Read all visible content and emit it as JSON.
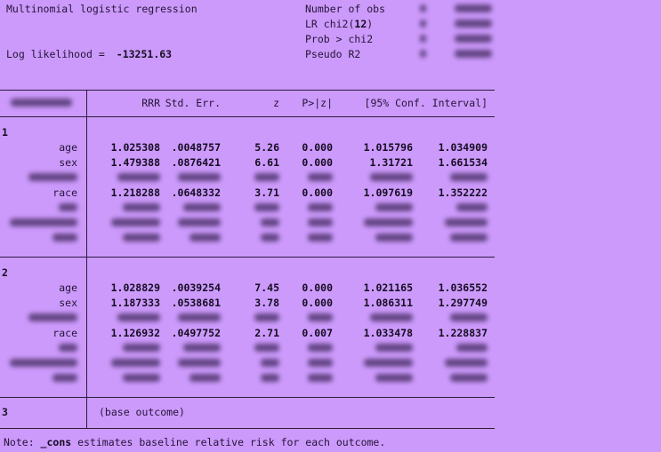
{
  "theme": {
    "background": "#cc9afb",
    "text": "#241439",
    "bold_text": "#150d22",
    "rule": "#2c1a41",
    "redaction": "#3a2356"
  },
  "header": {
    "title": "Multinomial logistic regression",
    "log_likelihood_label": "Log likelihood =",
    "log_likelihood_value": "-13251.63",
    "stats": [
      {
        "label": "Number of obs",
        "bold": "",
        "suffix": "",
        "eq_blob": "█",
        "value_blob": "██████",
        "redacted": true
      },
      {
        "label": "LR chi2(",
        "bold": "12",
        "suffix": ")",
        "eq_blob": "█",
        "value_blob": "██████",
        "redacted": true
      },
      {
        "label": "Prob > chi2",
        "bold": "",
        "suffix": "",
        "eq_blob": "█",
        "value_blob": "██████",
        "redacted": true
      },
      {
        "label": "Pseudo R2",
        "bold": "",
        "suffix": "",
        "eq_blob": "█",
        "value_blob": "██████",
        "redacted": true
      }
    ]
  },
  "table": {
    "depvar_blob": "██████████",
    "depvar_redacted": true,
    "col_headers": {
      "rrr": "RRR",
      "se": "Std. Err.",
      "z": "z",
      "p": "P>|z|",
      "ci": "[95% Conf. Interval]"
    },
    "sections": [
      {
        "outcome": "1",
        "rows": [
          {
            "label": "age",
            "rrr": "1.025308",
            "se": ".0048757",
            "z": "5.26",
            "p": "0.000",
            "lo": "1.015796",
            "hi": "1.034909"
          },
          {
            "label": "sex",
            "rrr": "1.479388",
            "se": ".0876421",
            "z": "6.61",
            "p": "0.000",
            "lo": "1.31721",
            "hi": "1.661534"
          },
          {
            "redacted": true,
            "label": "████████",
            "rrr": "███████",
            "se": "███████",
            "z": "████",
            "p": "████",
            "lo": "███████",
            "hi": "██████"
          },
          {
            "label": "race",
            "rrr": "1.218288",
            "se": ".0648332",
            "z": "3.71",
            "p": "0.000",
            "lo": "1.097619",
            "hi": "1.352222"
          },
          {
            "redacted": true,
            "label": "███",
            "rrr": "██████",
            "se": "██████",
            "z": "████",
            "p": "████",
            "lo": "██████",
            "hi": "█████"
          },
          {
            "redacted": true,
            "label": "███████████",
            "rrr": "████████",
            "se": "███████",
            "z": "███",
            "p": "████",
            "lo": "████████",
            "hi": "███████"
          },
          {
            "redacted": true,
            "label": "████",
            "rrr": "██████",
            "se": "█████",
            "z": "███",
            "p": "████",
            "lo": "██████",
            "hi": "██████"
          }
        ]
      },
      {
        "outcome": "2",
        "rows": [
          {
            "label": "age",
            "rrr": "1.028829",
            "se": ".0039254",
            "z": "7.45",
            "p": "0.000",
            "lo": "1.021165",
            "hi": "1.036552"
          },
          {
            "label": "sex",
            "rrr": "1.187333",
            "se": ".0538681",
            "z": "3.78",
            "p": "0.000",
            "lo": "1.086311",
            "hi": "1.297749"
          },
          {
            "redacted": true,
            "label": "████████",
            "rrr": "███████",
            "se": "███████",
            "z": "████",
            "p": "████",
            "lo": "███████",
            "hi": "██████"
          },
          {
            "label": "race",
            "rrr": "1.126932",
            "se": ".0497752",
            "z": "2.71",
            "p": "0.007",
            "lo": "1.033478",
            "hi": "1.228837"
          },
          {
            "redacted": true,
            "label": "███",
            "rrr": "██████",
            "se": "██████",
            "z": "████",
            "p": "████",
            "lo": "██████",
            "hi": "█████"
          },
          {
            "redacted": true,
            "label": "███████████",
            "rrr": "████████",
            "se": "███████",
            "z": "███",
            "p": "████",
            "lo": "████████",
            "hi": "███████"
          },
          {
            "redacted": true,
            "label": "████",
            "rrr": "██████",
            "se": "█████",
            "z": "███",
            "p": "████",
            "lo": "██████",
            "hi": "██████"
          }
        ]
      },
      {
        "outcome": "3",
        "base_outcome": "(base outcome)"
      }
    ]
  },
  "note": {
    "prefix": "Note: ",
    "bold": "_cons",
    "suffix": " estimates baseline relative risk for each outcome."
  }
}
